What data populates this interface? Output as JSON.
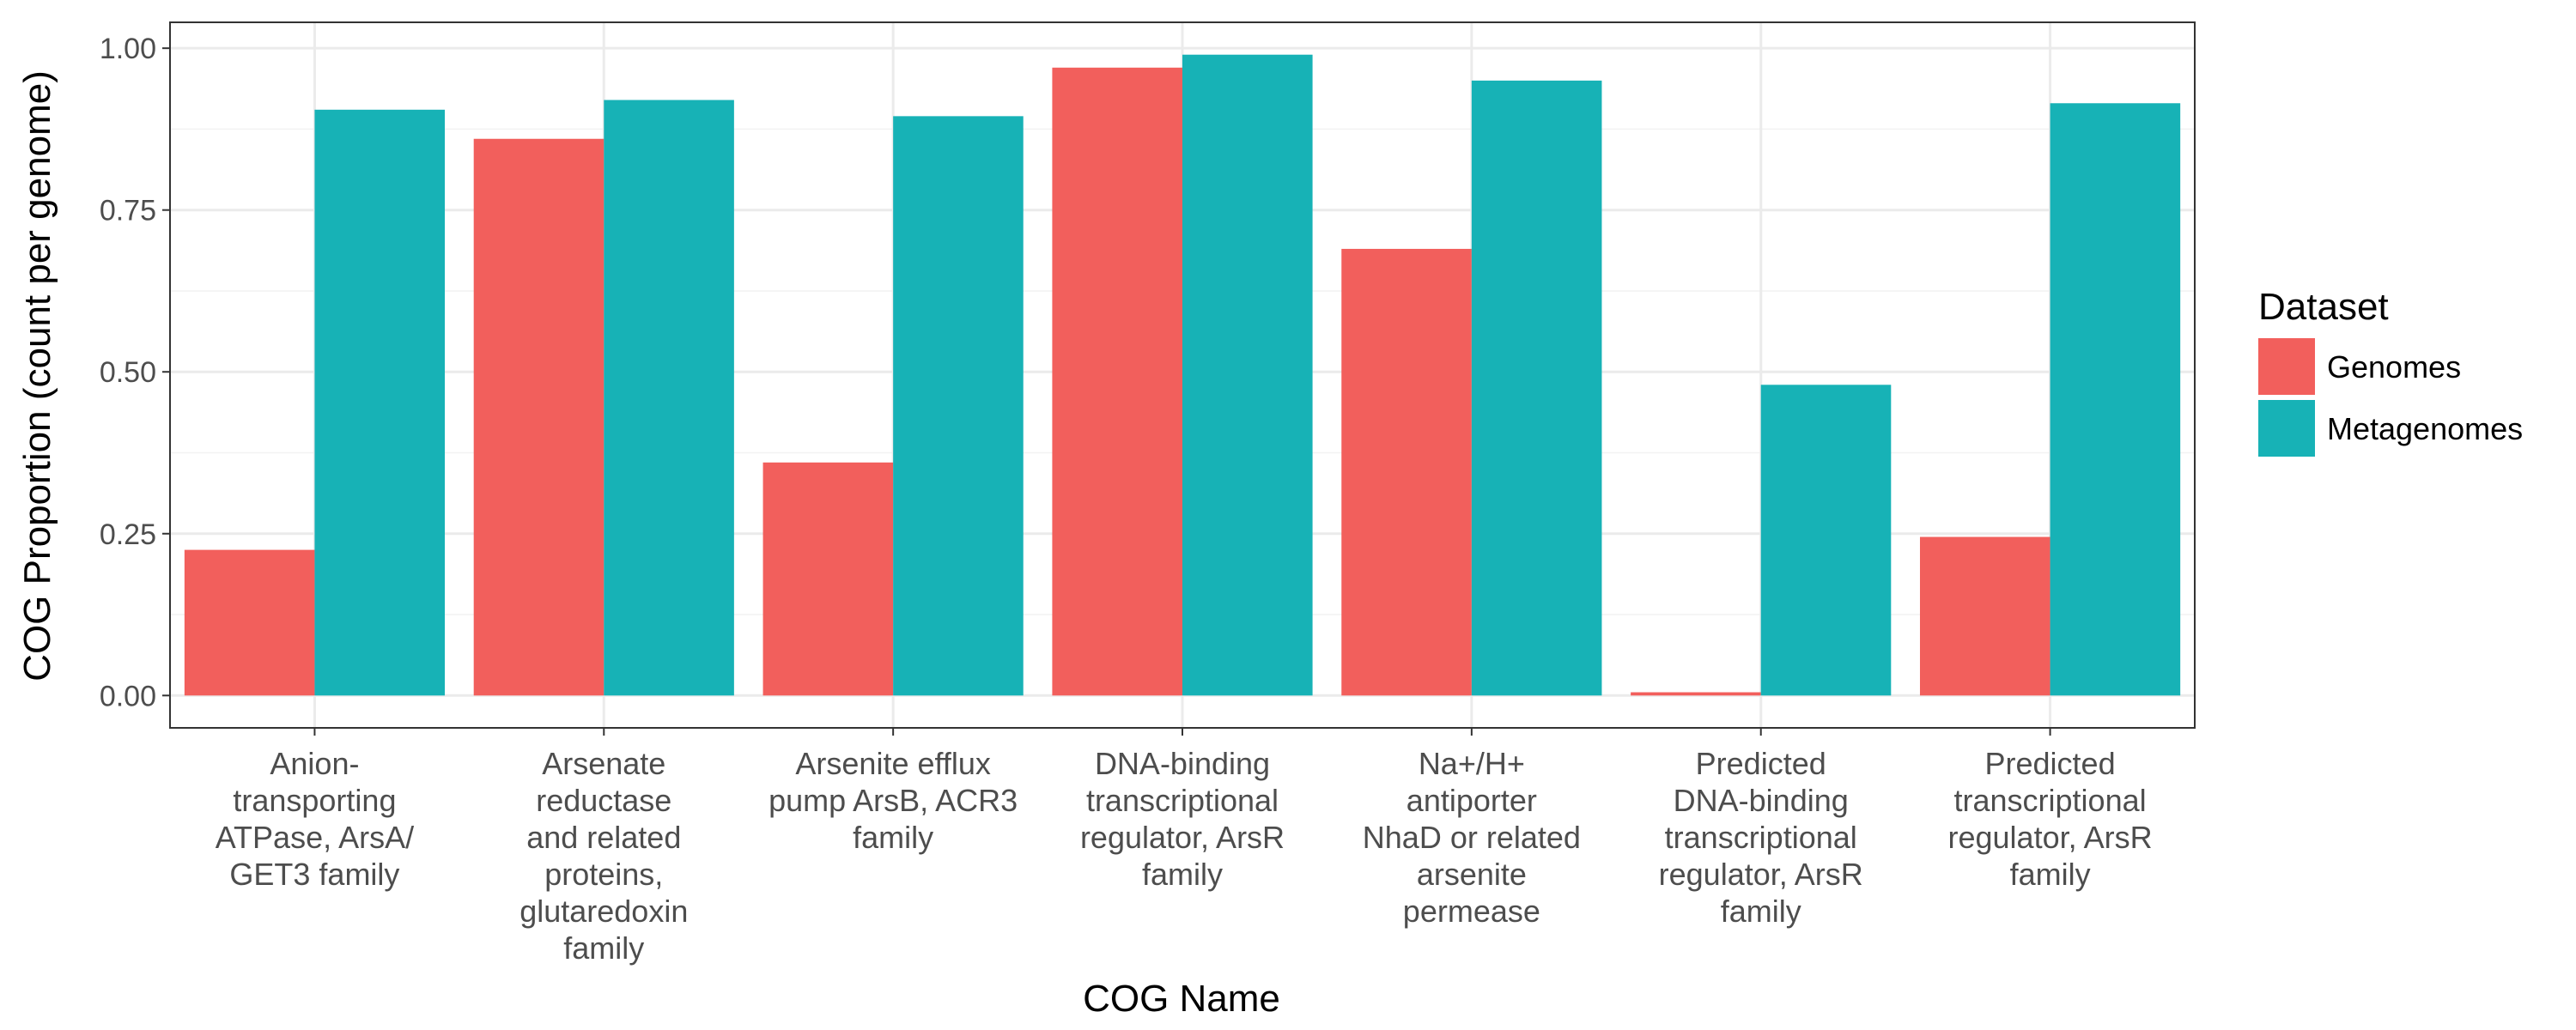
{
  "chart_data": {
    "type": "bar",
    "title": "",
    "xlabel": "COG Name",
    "ylabel": "COG Proportion (count per genome)",
    "ylim": [
      -0.05,
      1.04
    ],
    "yticks": [
      "0.00",
      "0.25",
      "0.50",
      "0.75",
      "1.00"
    ],
    "categories": [
      [
        "Anion-",
        "transporting",
        "ATPase, ArsA/",
        "GET3 family"
      ],
      [
        "Arsenate",
        "reductase",
        "and related",
        "proteins,",
        "glutaredoxin",
        "family"
      ],
      [
        "Arsenite efflux",
        "pump ArsB, ACR3",
        "family"
      ],
      [
        "DNA-binding",
        "transcriptional",
        "regulator, ArsR",
        "family"
      ],
      [
        "Na+/H+",
        "antiporter",
        "NhaD or related",
        "arsenite",
        "permease"
      ],
      [
        "Predicted",
        "DNA-binding",
        "transcriptional",
        "regulator, ArsR",
        "family"
      ],
      [
        "Predicted",
        "transcriptional",
        "regulator, ArsR",
        "family"
      ]
    ],
    "series": [
      {
        "name": "Genomes",
        "color": "#F25F5C",
        "values": [
          0.225,
          0.86,
          0.36,
          0.97,
          0.69,
          0.005,
          0.245
        ]
      },
      {
        "name": "Metagenomes",
        "color": "#17B2B6",
        "values": [
          0.905,
          0.92,
          0.895,
          0.99,
          0.95,
          0.48,
          0.915
        ]
      }
    ],
    "legend": {
      "title": "Dataset",
      "position": "right"
    },
    "grid": true
  }
}
